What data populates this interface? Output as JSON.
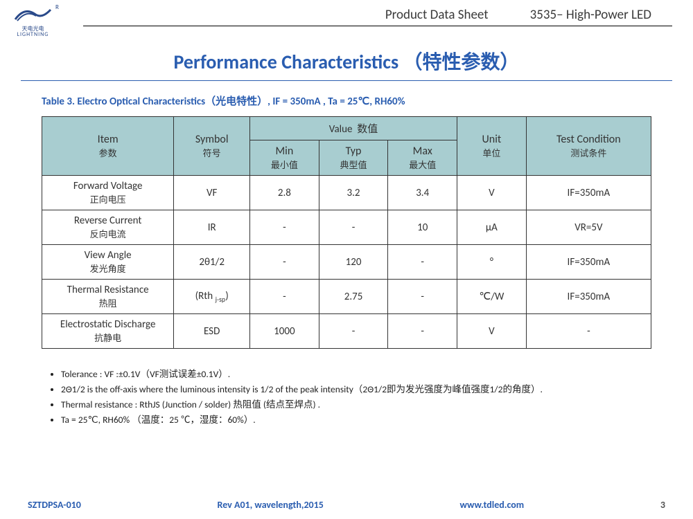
{
  "header": {
    "logo_cn": "天电光电",
    "logo_en": "LIGHTNING",
    "reg": "R",
    "doc_type": "Product Data Sheet",
    "product": "3535– High-Power LED"
  },
  "title": "Performance Characteristics （特性参数）",
  "caption": "Table 3. Electro Optical Characteristics（光电特性）, IF = 350mA , Ta = 25℃, RH60%",
  "table": {
    "headers": {
      "item_en": "Item",
      "item_cn": "参数",
      "symbol_en": "Symbol",
      "symbol_cn": "符号",
      "value_en": "Value",
      "value_cn": "数值",
      "min_en": "Min",
      "min_cn": "最小值",
      "typ_en": "Typ",
      "typ_cn": "典型值",
      "max_en": "Max",
      "max_cn": "最大值",
      "unit_en": "Unit",
      "unit_cn": "单位",
      "cond_en": "Test  Condition",
      "cond_cn": "测试条件"
    },
    "rows": [
      {
        "item_en": "Forward Voltage",
        "item_cn": "正向电压",
        "sym": "VF",
        "min": "2.8",
        "typ": "3.2",
        "max": "3.4",
        "unit": "V",
        "cond": "IF=350mA"
      },
      {
        "item_en": "Reverse Current",
        "item_cn": "反向电流",
        "sym": "IR",
        "min": "-",
        "typ": "-",
        "max": "10",
        "unit": "μA",
        "cond": "VR=5V"
      },
      {
        "item_en": "View Angle",
        "item_cn": "发光角度",
        "sym": "2θ1/2",
        "min": "-",
        "typ": "120",
        "max": "-",
        "unit": "°",
        "cond": "IF=350mA"
      },
      {
        "item_en": "Thermal Resistance",
        "item_cn": "热阻",
        "sym": "(Rth j-sp)",
        "min": "-",
        "typ": "2.75",
        "max": "-",
        "unit": "℃/W",
        "cond": "IF=350mA"
      },
      {
        "item_en": "Electrostatic Discharge",
        "item_cn": "抗静电",
        "sym": "ESD",
        "min": "1000",
        "typ": "-",
        "max": "-",
        "unit": "V",
        "cond": "-"
      }
    ]
  },
  "notes": [
    "Tolerance : VF :±0.1V（VF测试误差±0.1V）.",
    "2Θ1/2 is the off-axis where the luminous intensity is 1/2 of the peak intensity（2Θ1/2即为发光强度为峰值强度1/2的角度）.",
    "Thermal resistance : RthJS (Junction / solder)  热阻值 (结点至焊点) .",
    "Ta = 25℃, RH60% （温度：25 ℃，湿度：60%）."
  ],
  "footer": {
    "doc_id": "SZTDPSA-010",
    "rev": "Rev A01, wavelength,2015",
    "url": "www.tdled.com",
    "page": "3"
  },
  "colors": {
    "accent": "#2a5db0",
    "th_bg": "#a8cdd0",
    "border": "#333333",
    "text": "#333333"
  }
}
